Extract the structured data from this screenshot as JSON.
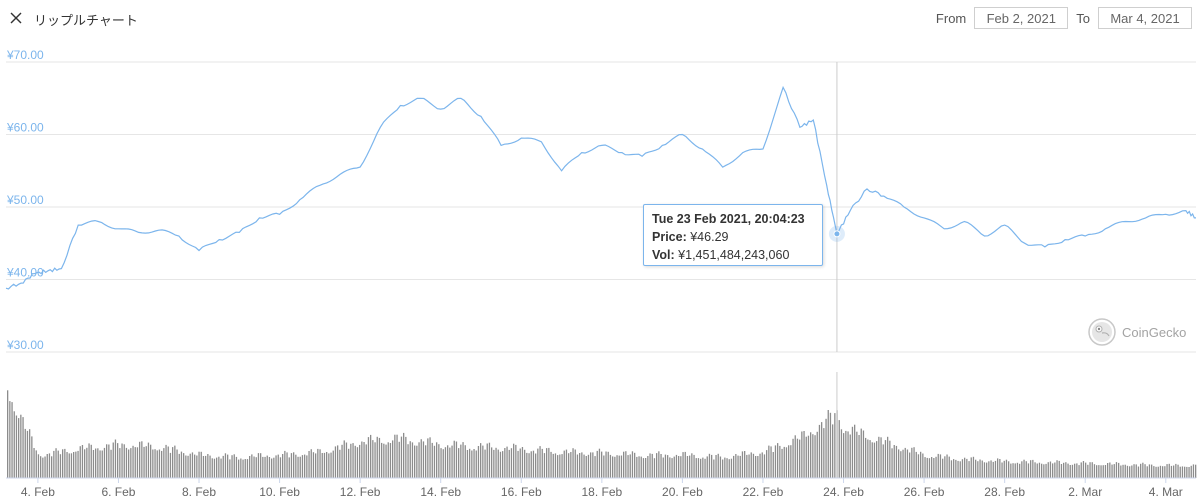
{
  "header": {
    "title": "リップルチャート",
    "from_label": "From",
    "from_value": "Feb 2, 2021",
    "to_label": "To",
    "to_value": "Mar 4, 2021"
  },
  "tooltip": {
    "date": "Tue 23 Feb 2021, 20:04:23",
    "price_label": "Price:",
    "price_value": "¥46.29",
    "vol_label": "Vol:",
    "vol_value": "¥1,451,484,243,060"
  },
  "brand": {
    "name": "CoinGecko"
  },
  "colors": {
    "line": "#7cb5ec",
    "grid": "#e6e6e6",
    "axis_label": "#7cb5ec",
    "volume": "#8c8c8c",
    "crosshair": "#cccccc"
  },
  "chart_data": {
    "type": "line",
    "title": "リップルチャート",
    "ylim": [
      30,
      70
    ],
    "yticks": [
      30,
      40,
      50,
      60,
      70
    ],
    "ytick_labels": [
      "¥30.00",
      "¥40.00",
      "¥50.00",
      "¥60.00",
      "¥70.00"
    ],
    "xlim": [
      "2021-02-03T05:00",
      "2021-03-04T18:00"
    ],
    "xtick_values": [
      "2021-02-04",
      "2021-02-06",
      "2021-02-08",
      "2021-02-10",
      "2021-02-12",
      "2021-02-14",
      "2021-02-16",
      "2021-02-18",
      "2021-02-20",
      "2021-02-22",
      "2021-02-24",
      "2021-02-26",
      "2021-02-28",
      "2021-03-02",
      "2021-03-04"
    ],
    "xtick_labels": [
      "4. Feb",
      "6. Feb",
      "8. Feb",
      "10. Feb",
      "12. Feb",
      "14. Feb",
      "16. Feb",
      "18. Feb",
      "20. Feb",
      "22. Feb",
      "24. Feb",
      "26. Feb",
      "28. Feb",
      "2. Mar",
      "4. Mar"
    ],
    "grid": true,
    "highlight": {
      "x": "2021-02-23T20:04",
      "y": 46.29
    },
    "series": [
      {
        "x": [
          "2021-02-03T05:00",
          "2021-02-03T14:00",
          "2021-02-03T22:00",
          "2021-02-04T06:00",
          "2021-02-04T14:00",
          "2021-02-05T00:00",
          "2021-02-05T12:00",
          "2021-02-06T00:00",
          "2021-02-06T12:00",
          "2021-02-07T00:00",
          "2021-02-07T12:00",
          "2021-02-08T00:00",
          "2021-02-08T12:00",
          "2021-02-09T00:00",
          "2021-02-09T12:00",
          "2021-02-10T00:00",
          "2021-02-10T12:00",
          "2021-02-11T00:00",
          "2021-02-11T12:00",
          "2021-02-12T00:00",
          "2021-02-12T12:00",
          "2021-02-13T00:00",
          "2021-02-13T12:00",
          "2021-02-14T00:00",
          "2021-02-14T12:00",
          "2021-02-15T00:00",
          "2021-02-15T12:00",
          "2021-02-16T00:00",
          "2021-02-16T12:00",
          "2021-02-17T00:00",
          "2021-02-17T12:00",
          "2021-02-18T00:00",
          "2021-02-18T12:00",
          "2021-02-19T00:00",
          "2021-02-19T12:00",
          "2021-02-20T00:00",
          "2021-02-20T12:00",
          "2021-02-21T00:00",
          "2021-02-21T12:00",
          "2021-02-22T00:00",
          "2021-02-22T12:00",
          "2021-02-22T22:00",
          "2021-02-23T06:00",
          "2021-02-23T14:00",
          "2021-02-23T20:04",
          "2021-02-24T04:00",
          "2021-02-24T14:00",
          "2021-02-25T00:00",
          "2021-02-25T12:00",
          "2021-02-26T00:00",
          "2021-02-26T12:00",
          "2021-02-27T00:00",
          "2021-02-27T12:00",
          "2021-02-28T00:00",
          "2021-02-28T12:00",
          "2021-03-01T00:00",
          "2021-03-01T12:00",
          "2021-03-02T00:00",
          "2021-03-02T12:00",
          "2021-03-03T00:00",
          "2021-03-03T12:00",
          "2021-03-04T00:00",
          "2021-03-04T12:00",
          "2021-03-04T18:00"
        ],
        "values": [
          38.8,
          39.5,
          40.8,
          41.2,
          41.5,
          47.5,
          48.0,
          47.0,
          46.5,
          46.8,
          46.0,
          44.0,
          45.5,
          46.5,
          48.5,
          49.0,
          51.0,
          53.0,
          54.5,
          55.5,
          61.0,
          64.0,
          65.0,
          63.5,
          65.0,
          62.5,
          58.5,
          59.5,
          59.0,
          55.0,
          57.5,
          58.5,
          57.5,
          57.0,
          58.5,
          60.0,
          58.0,
          55.5,
          57.5,
          58.0,
          66.5,
          61.0,
          62.0,
          53.0,
          46.29,
          49.5,
          52.5,
          51.5,
          50.0,
          48.5,
          47.0,
          48.0,
          46.0,
          47.5,
          45.0,
          44.5,
          45.5,
          46.0,
          47.0,
          48.0,
          48.5,
          49.0,
          49.5,
          48.5
        ]
      }
    ],
    "volume": {
      "x": [
        "2021-02-03T05:00",
        "2021-02-04T00:00",
        "2021-02-05T00:00",
        "2021-02-06T00:00",
        "2021-02-07T00:00",
        "2021-02-08T00:00",
        "2021-02-09T00:00",
        "2021-02-10T00:00",
        "2021-02-11T00:00",
        "2021-02-12T00:00",
        "2021-02-13T00:00",
        "2021-02-14T00:00",
        "2021-02-15T00:00",
        "2021-02-16T00:00",
        "2021-02-17T00:00",
        "2021-02-18T00:00",
        "2021-02-19T00:00",
        "2021-02-20T00:00",
        "2021-02-21T00:00",
        "2021-02-22T00:00",
        "2021-02-23T00:00",
        "2021-02-23T20:04",
        "2021-02-24T00:00",
        "2021-02-25T00:00",
        "2021-02-26T00:00",
        "2021-02-27T00:00",
        "2021-02-28T00:00",
        "2021-03-01T00:00",
        "2021-03-02T00:00",
        "2021-03-03T00:00",
        "2021-03-04T00:00",
        "2021-03-04T18:00"
      ],
      "values": [
        0.88,
        0.22,
        0.28,
        0.32,
        0.3,
        0.22,
        0.2,
        0.22,
        0.25,
        0.35,
        0.38,
        0.32,
        0.3,
        0.28,
        0.25,
        0.24,
        0.22,
        0.22,
        0.2,
        0.25,
        0.4,
        0.62,
        0.48,
        0.35,
        0.22,
        0.18,
        0.16,
        0.15,
        0.14,
        0.13,
        0.12,
        0.12
      ]
    }
  }
}
